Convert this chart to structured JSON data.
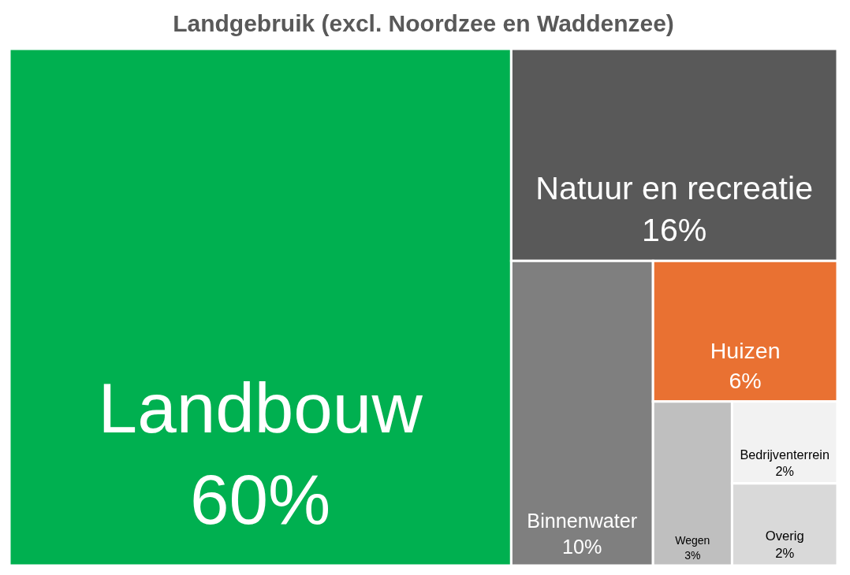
{
  "chart_data": {
    "type": "other",
    "title": "Landgebruik (excl. Noordzee en Waddenzee)",
    "categories": [
      "Landbouw",
      "Natuur en recreatie",
      "Binnenwater",
      "Huizen",
      "Wegen",
      "Bedrijventerrein",
      "Overig"
    ],
    "values": [
      60,
      16,
      10,
      6,
      3,
      2,
      2
    ],
    "value_labels": [
      "60%",
      "16%",
      "10%",
      "6%",
      "3%",
      "2%",
      "2%"
    ],
    "colors": [
      "#00b050",
      "#595959",
      "#7f7f7f",
      "#e97132",
      "#bfbfbf",
      "#f2f2f2",
      "#d9d9d9"
    ]
  }
}
